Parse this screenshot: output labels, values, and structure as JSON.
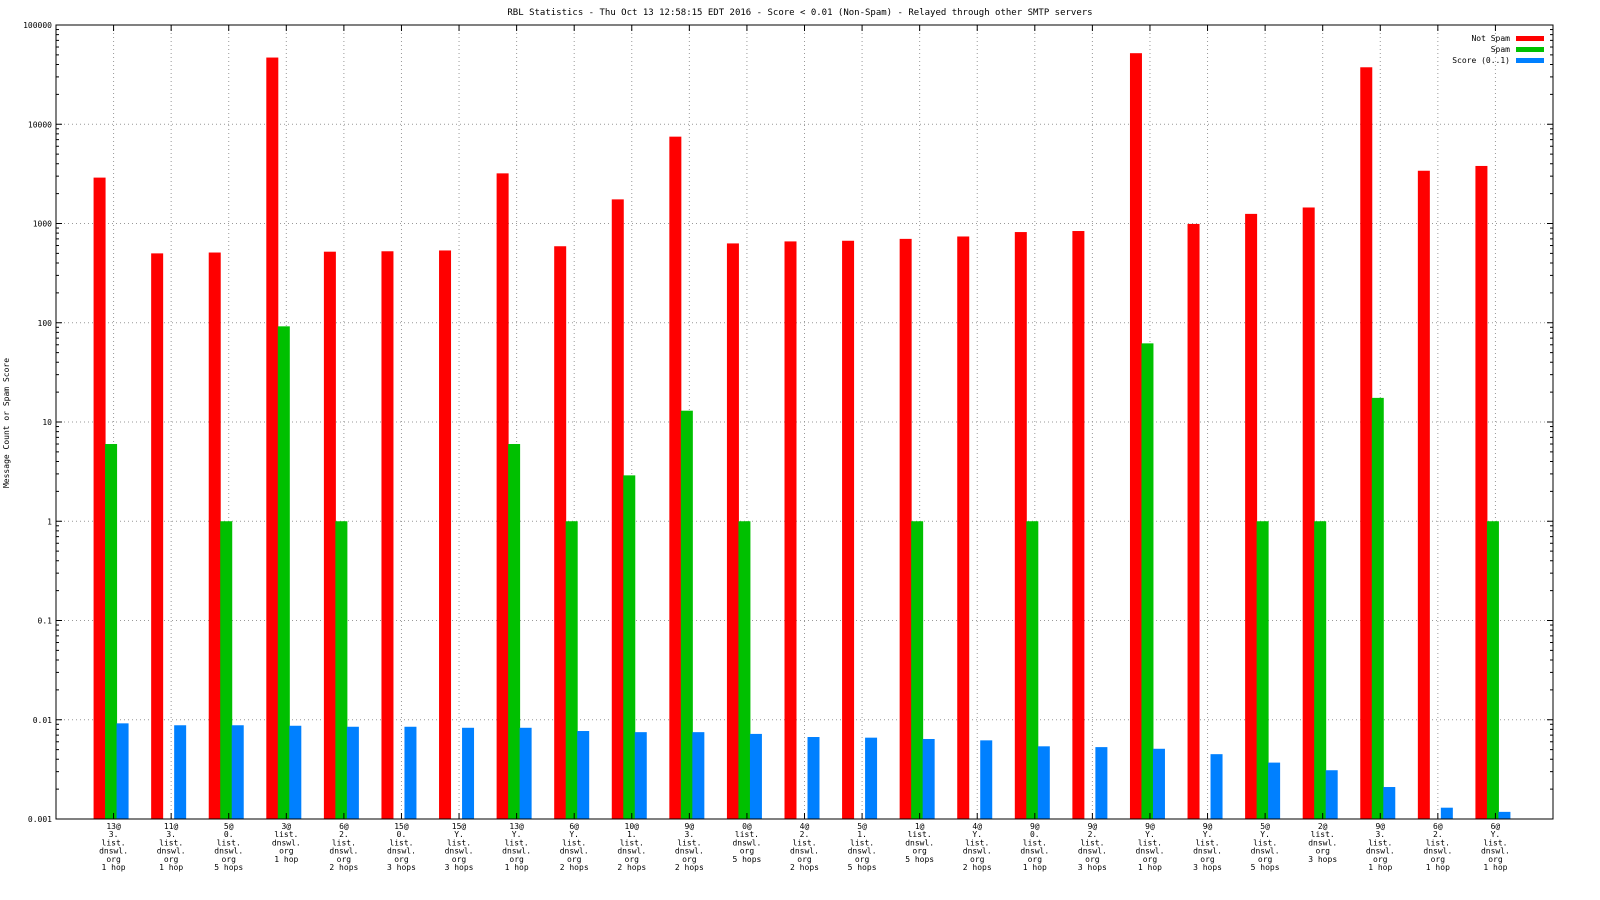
{
  "chart_data": {
    "type": "bar",
    "title": "RBL Statistics - Thu Oct 13 12:58:15 EDT 2016 - Score < 0.01 (Non-Spam) - Relayed through other SMTP servers",
    "ylabel": "Message Count or Spam Score",
    "xlabel": "",
    "yscale": "log",
    "ylim": [
      0.001,
      100000
    ],
    "yticks": [
      "100000",
      "10000",
      "1000",
      "100",
      "10",
      "1",
      "0.1",
      "0.01",
      "0.001"
    ],
    "grid": true,
    "legend_position": "top-right",
    "categories": [
      [
        "13@",
        "3.",
        "list.",
        "dnswl.",
        "org",
        "1 hop"
      ],
      [
        "11@",
        "3.",
        "list.",
        "dnswl.",
        "org",
        "1 hop"
      ],
      [
        "5@",
        "0.",
        "list.",
        "dnswl.",
        "org",
        "5 hops"
      ],
      [
        "3@",
        "list.",
        "dnswl.",
        "org",
        "1 hop"
      ],
      [
        "6@",
        "2.",
        "list.",
        "dnswl.",
        "org",
        "2 hops"
      ],
      [
        "15@",
        "0.",
        "list.",
        "dnswl.",
        "org",
        "3 hops"
      ],
      [
        "15@",
        "Y.",
        "list.",
        "dnswl.",
        "org",
        "3 hops"
      ],
      [
        "13@",
        "Y.",
        "list.",
        "dnswl.",
        "org",
        "1 hop"
      ],
      [
        "6@",
        "Y.",
        "list.",
        "dnswl.",
        "org",
        "2 hops"
      ],
      [
        "10@",
        "1.",
        "list.",
        "dnswl.",
        "org",
        "2 hops"
      ],
      [
        "9@",
        "3.",
        "list.",
        "dnswl.",
        "org",
        "2 hops"
      ],
      [
        "0@",
        "list.",
        "dnswl.",
        "org",
        "5 hops"
      ],
      [
        "4@",
        "2.",
        "list.",
        "dnswl.",
        "org",
        "2 hops"
      ],
      [
        "5@",
        "1.",
        "list.",
        "dnswl.",
        "org",
        "5 hops"
      ],
      [
        "1@",
        "list.",
        "dnswl.",
        "org",
        "5 hops"
      ],
      [
        "4@",
        "Y.",
        "list.",
        "dnswl.",
        "org",
        "2 hops"
      ],
      [
        "9@",
        "0.",
        "list.",
        "dnswl.",
        "org",
        "1 hop"
      ],
      [
        "9@",
        "2.",
        "list.",
        "dnswl.",
        "org",
        "3 hops"
      ],
      [
        "9@",
        "Y.",
        "list.",
        "dnswl.",
        "org",
        "1 hop"
      ],
      [
        "9@",
        "Y.",
        "list.",
        "dnswl.",
        "org",
        "3 hops"
      ],
      [
        "5@",
        "Y.",
        "list.",
        "dnswl.",
        "org",
        "5 hops"
      ],
      [
        "2@",
        "list.",
        "dnswl.",
        "org",
        "3 hops"
      ],
      [
        "9@",
        "3.",
        "list.",
        "dnswl.",
        "org",
        "1 hop"
      ],
      [
        "6@",
        "2.",
        "list.",
        "dnswl.",
        "org",
        "1 hop"
      ],
      [
        "6@",
        "Y.",
        "list.",
        "dnswl.",
        "org",
        "1 hop"
      ]
    ],
    "series": [
      {
        "name": "Not Spam",
        "color": "#ff0000",
        "values": [
          2900,
          500,
          510,
          47000,
          520,
          525,
          535,
          3200,
          590,
          1750,
          7500,
          630,
          660,
          670,
          700,
          740,
          820,
          840,
          52000,
          990,
          1250,
          1450,
          37500,
          3400,
          3800
        ]
      },
      {
        "name": "Spam",
        "color": "#00c000",
        "values": [
          6,
          null,
          1,
          92,
          1,
          null,
          null,
          6,
          1,
          2.9,
          13,
          1,
          null,
          null,
          1,
          null,
          1,
          null,
          62,
          null,
          1,
          1,
          17.5,
          null,
          1
        ]
      },
      {
        "name": "Score (0..1)",
        "color": "#0080ff",
        "values": [
          0.0092,
          0.0088,
          0.0088,
          0.0087,
          0.0085,
          0.0085,
          0.0083,
          0.0083,
          0.0077,
          0.0075,
          0.0075,
          0.0072,
          0.0067,
          0.0066,
          0.0064,
          0.0062,
          0.0054,
          0.0053,
          0.0051,
          0.0045,
          0.0037,
          0.0031,
          0.0021,
          0.0013,
          0.00118
        ]
      }
    ]
  }
}
